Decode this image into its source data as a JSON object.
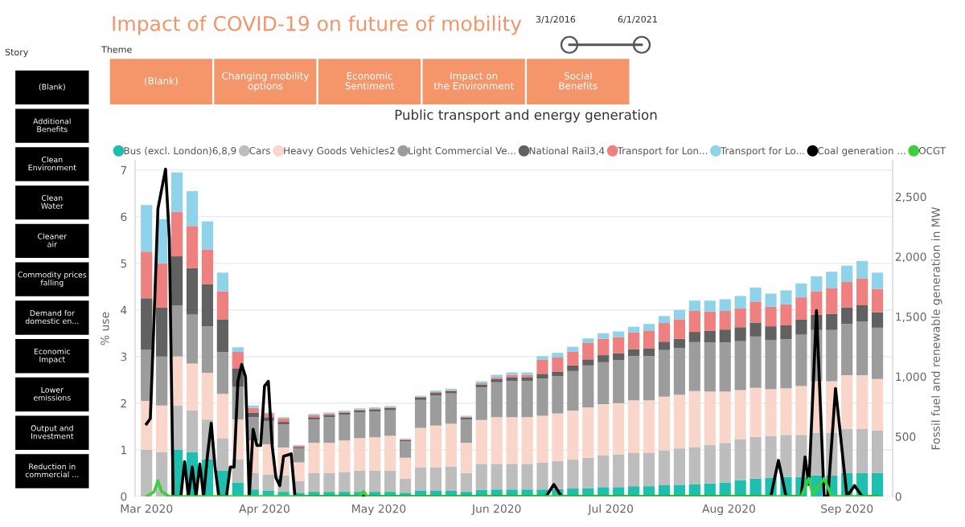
{
  "chart_data": {
    "type": "bar",
    "stacked": true,
    "title": "Impact of COVID-19 on future of mobility",
    "subtitle": "Public transport and energy generation",
    "ylabel": "% use",
    "y2label": "Fossil fuel and renewable generation in MW",
    "annotations": [
      "Story",
      "(Blank)",
      "Additional Benefits",
      "Clean Environment",
      "Clean Water",
      "Cleaner air",
      "Commodity prices falling",
      "Demand for domestic en...",
      "Economic Impact",
      "Lower emissions",
      "Output and Investment",
      "Reduction in commercial ...",
      "Theme",
      "(Blank)",
      "Changing mobility options",
      "Economic Sentiment",
      "Impact on the Environment",
      "Social Benefits",
      "3/1/2016",
      "6/1/2021"
    ],
    "x": [
      "2020-03-01",
      "2020-03-05",
      "2020-03-09",
      "2020-03-13",
      "2020-03-17",
      "2020-03-21",
      "2020-03-25",
      "2020-03-29",
      "2020-04-02",
      "2020-04-06",
      "2020-04-10",
      "2020-04-14",
      "2020-04-18",
      "2020-04-22",
      "2020-04-26",
      "2020-04-30",
      "2020-05-04",
      "2020-05-08",
      "2020-05-12",
      "2020-05-16",
      "2020-05-20",
      "2020-05-24",
      "2020-05-28",
      "2020-06-01",
      "2020-06-05",
      "2020-06-09",
      "2020-06-13",
      "2020-06-17",
      "2020-06-21",
      "2020-06-25",
      "2020-06-29",
      "2020-07-03",
      "2020-07-07",
      "2020-07-11",
      "2020-07-15",
      "2020-07-19",
      "2020-07-23",
      "2020-07-27",
      "2020-07-31",
      "2020-08-04",
      "2020-08-08",
      "2020-08-12",
      "2020-08-16",
      "2020-08-20",
      "2020-08-24",
      "2020-08-28",
      "2020-09-01",
      "2020-09-05",
      "2020-09-09"
    ],
    "series": [
      {
        "name": "Bus (excl. London)6,8,9",
        "color": "#1fbfb0",
        "values": [
          null,
          null,
          1.0,
          0.95,
          0.8,
          0.55,
          0.3,
          0.15,
          0.12,
          0.1,
          0.08,
          0.1,
          0.1,
          0.1,
          0.1,
          0.1,
          0.1,
          0.08,
          0.12,
          0.12,
          0.12,
          0.1,
          0.14,
          0.15,
          0.15,
          0.15,
          0.15,
          0.16,
          0.17,
          0.18,
          0.2,
          0.2,
          0.22,
          0.22,
          0.24,
          0.25,
          0.26,
          0.28,
          0.3,
          0.35,
          0.38,
          0.4,
          0.42,
          0.42,
          0.45,
          0.45,
          0.5,
          0.5,
          0.5
        ]
      },
      {
        "name": "Cars",
        "color": "#bdbdbd",
        "values": [
          1.0,
          0.95,
          0.95,
          0.9,
          0.85,
          0.7,
          0.5,
          0.35,
          0.35,
          0.35,
          0.25,
          0.4,
          0.4,
          0.42,
          0.45,
          0.45,
          0.45,
          0.3,
          0.5,
          0.5,
          0.52,
          0.4,
          0.55,
          0.55,
          0.55,
          0.55,
          0.58,
          0.6,
          0.62,
          0.65,
          0.68,
          0.7,
          0.72,
          0.72,
          0.75,
          0.78,
          0.8,
          0.82,
          0.85,
          0.88,
          0.9,
          0.9,
          0.9,
          0.9,
          0.92,
          0.92,
          0.95,
          0.95,
          0.92
        ]
      },
      {
        "name": "Heavy Goods Vehicles2",
        "color": "#f9d6c9",
        "values": [
          1.05,
          1.0,
          1.05,
          1.0,
          1.0,
          0.95,
          0.85,
          0.7,
          0.65,
          0.6,
          0.4,
          0.65,
          0.65,
          0.68,
          0.7,
          0.72,
          0.75,
          0.45,
          0.85,
          0.9,
          0.92,
          0.65,
          0.95,
          1.0,
          1.0,
          1.0,
          1.0,
          1.02,
          1.05,
          1.08,
          1.1,
          1.1,
          1.12,
          1.12,
          1.15,
          1.15,
          1.2,
          1.15,
          1.1,
          1.05,
          1.05,
          1.0,
          1.0,
          1.05,
          1.1,
          1.1,
          1.15,
          1.15,
          1.1
        ]
      },
      {
        "name": "Light Commercial Ve...",
        "color": "#9c9c9c",
        "values": [
          1.1,
          1.05,
          1.1,
          1.05,
          1.0,
          0.9,
          0.7,
          0.5,
          0.5,
          0.5,
          0.3,
          0.5,
          0.55,
          0.55,
          0.55,
          0.55,
          0.55,
          0.35,
          0.6,
          0.65,
          0.65,
          0.5,
          0.7,
          0.75,
          0.78,
          0.78,
          0.8,
          0.8,
          0.85,
          0.9,
          0.9,
          0.92,
          0.95,
          0.95,
          1.0,
          1.0,
          1.05,
          1.05,
          1.05,
          1.05,
          1.1,
          1.05,
          1.05,
          1.1,
          1.1,
          1.1,
          1.1,
          1.15,
          1.1
        ]
      },
      {
        "name": "National Rail3,4",
        "color": "#616161",
        "values": [
          1.1,
          1.05,
          1.05,
          1.0,
          0.9,
          0.7,
          0.4,
          0.1,
          0.08,
          0.05,
          0.03,
          0.05,
          0.05,
          0.05,
          0.05,
          0.05,
          0.05,
          0.03,
          0.05,
          0.05,
          0.05,
          0.04,
          0.06,
          0.07,
          0.08,
          0.08,
          0.1,
          0.1,
          0.12,
          0.13,
          0.15,
          0.15,
          0.15,
          0.17,
          0.18,
          0.2,
          0.22,
          0.25,
          0.28,
          0.3,
          0.3,
          0.3,
          0.3,
          0.32,
          0.33,
          0.35,
          0.35,
          0.35,
          0.33
        ]
      },
      {
        "name": "Transport for Lon...",
        "color": "#ef8080",
        "values": [
          1.0,
          0.95,
          0.95,
          0.9,
          0.75,
          0.6,
          0.35,
          0.1,
          0.08,
          0.08,
          0.03,
          0.05,
          0.03,
          0.02,
          0.02,
          0.02,
          0.02,
          0.02,
          0.02,
          0.02,
          0.02,
          0.02,
          0.03,
          0.04,
          0.05,
          0.05,
          0.3,
          0.3,
          0.3,
          0.35,
          0.35,
          0.35,
          0.36,
          0.38,
          0.4,
          0.42,
          0.45,
          0.42,
          0.4,
          0.4,
          0.45,
          0.42,
          0.45,
          0.48,
          0.5,
          0.55,
          0.55,
          0.58,
          0.5
        ]
      },
      {
        "name": "Transport for Lo...",
        "color": "#8fd3ea",
        "values": [
          1.0,
          0.95,
          0.85,
          0.75,
          0.6,
          0.4,
          0.1,
          0.05,
          0.02,
          0.02,
          0.01,
          0.02,
          0.02,
          0.02,
          0.02,
          0.02,
          0.02,
          0.01,
          0.02,
          0.03,
          0.03,
          0.02,
          0.04,
          0.05,
          0.05,
          0.05,
          0.08,
          0.1,
          0.1,
          0.1,
          0.12,
          0.12,
          0.12,
          0.14,
          0.15,
          0.2,
          0.22,
          0.23,
          0.25,
          0.27,
          0.3,
          0.28,
          0.3,
          0.3,
          0.32,
          0.35,
          0.35,
          0.37,
          0.35
        ]
      },
      {
        "name": "Coal generation ...",
        "type": "line",
        "axis": "y2",
        "color": "#000000",
        "x": [
          "2020-03-01",
          "2020-03-02",
          "2020-03-03",
          "2020-03-04",
          "2020-03-06",
          "2020-03-07",
          "2020-03-08",
          "2020-03-10",
          "2020-03-11",
          "2020-03-12",
          "2020-03-13",
          "2020-03-14",
          "2020-03-15",
          "2020-03-16",
          "2020-03-17",
          "2020-03-18",
          "2020-03-19",
          "2020-03-20",
          "2020-03-22",
          "2020-03-23",
          "2020-03-24",
          "2020-03-25",
          "2020-03-26",
          "2020-03-27",
          "2020-03-28",
          "2020-03-29",
          "2020-03-30",
          "2020-03-31",
          "2020-04-01",
          "2020-04-02",
          "2020-04-03",
          "2020-04-04",
          "2020-04-05",
          "2020-04-06",
          "2020-04-08",
          "2020-04-09",
          "2020-06-14",
          "2020-06-16",
          "2020-06-18",
          "2020-08-12",
          "2020-08-14",
          "2020-08-16",
          "2020-08-20",
          "2020-08-21",
          "2020-08-22",
          "2020-08-24",
          "2020-08-26",
          "2020-08-27",
          "2020-08-29",
          "2020-08-31",
          "2020-09-01",
          "2020-09-03",
          "2020-09-05",
          "2020-09-09"
        ],
        "values": [
          605,
          650,
          1500,
          2400,
          2730,
          2150,
          0,
          0,
          290,
          0,
          245,
          0,
          270,
          0,
          340,
          610,
          245,
          0,
          0,
          245,
          245,
          960,
          1100,
          1000,
          0,
          560,
          425,
          425,
          920,
          960,
          425,
          155,
          90,
          335,
          355,
          0,
          0,
          100,
          0,
          0,
          300,
          0,
          0,
          330,
          100,
          1550,
          0,
          0,
          900,
          300,
          0,
          90,
          0,
          0
        ]
      },
      {
        "name": "OCGT",
        "type": "line",
        "axis": "y2",
        "color": "#3ccf3c",
        "x": [
          "2020-03-01",
          "2020-03-03",
          "2020-03-04",
          "2020-03-05",
          "2020-03-07",
          "2020-04-26",
          "2020-04-27",
          "2020-04-28",
          "2020-08-20",
          "2020-08-22",
          "2020-08-23",
          "2020-08-26",
          "2020-08-28",
          "2020-09-09"
        ],
        "values": [
          0,
          40,
          130,
          40,
          0,
          0,
          40,
          0,
          0,
          150,
          20,
          150,
          0,
          0
        ]
      }
    ],
    "xlim": [
      "2020-02-27",
      "2020-09-13"
    ],
    "xticks": [
      {
        "value": "2020-03-01",
        "label": "Mar 2020"
      },
      {
        "value": "2020-04-01",
        "label": "Apr 2020"
      },
      {
        "value": "2020-05-01",
        "label": "May 2020"
      },
      {
        "value": "2020-06-01",
        "label": "Jun 2020"
      },
      {
        "value": "2020-07-01",
        "label": "Jul 2020"
      },
      {
        "value": "2020-08-01",
        "label": "Aug 2020"
      },
      {
        "value": "2020-09-01",
        "label": "Sep 2020"
      }
    ],
    "ylim": [
      0,
      7.2
    ],
    "yticks": [
      0,
      1,
      2,
      3,
      4,
      5,
      6,
      7
    ],
    "y2lim": [
      0,
      2800
    ],
    "y2ticks": [
      0,
      500,
      {
        "value": 1000,
        "label": "1,000"
      },
      {
        "value": 1500,
        "label": "1,500"
      },
      {
        "value": 2000,
        "label": "2,000"
      },
      {
        "value": 2500,
        "label": "2,500"
      }
    ],
    "grid": "y",
    "legend": "top"
  }
}
